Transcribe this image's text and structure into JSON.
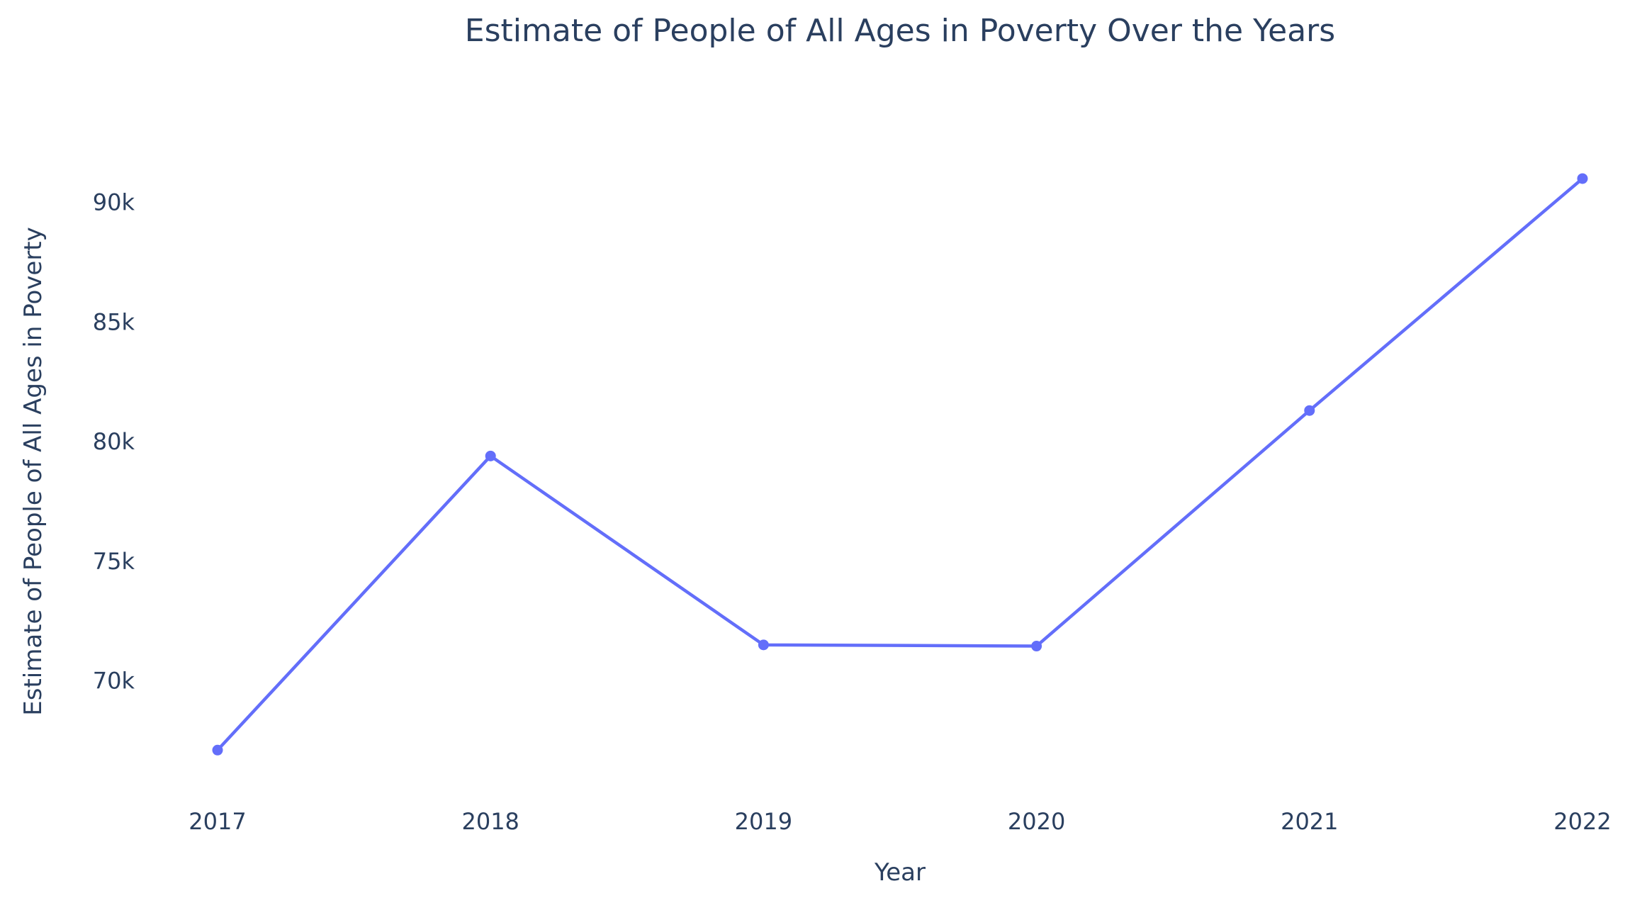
{
  "chart_data": {
    "type": "line",
    "title": "Estimate of People of All Ages in Poverty Over the Years",
    "xlabel": "Year",
    "ylabel": "Estimate of People of All Ages in Poverty",
    "categories": [
      "2017",
      "2018",
      "2019",
      "2020",
      "2021",
      "2022"
    ],
    "series": [
      {
        "values": [
          67100,
          79400,
          71500,
          71450,
          81300,
          91000
        ]
      }
    ],
    "yticks": [
      70000,
      75000,
      80000,
      85000,
      90000
    ],
    "ytick_labels": [
      "70k",
      "75k",
      "80k",
      "85k",
      "90k"
    ],
    "ylim": [
      66100,
      91800
    ],
    "grid": false,
    "legend": "none",
    "colors": {
      "line": "#636efa",
      "text": "#2a3f5f",
      "background": "#ffffff"
    }
  }
}
